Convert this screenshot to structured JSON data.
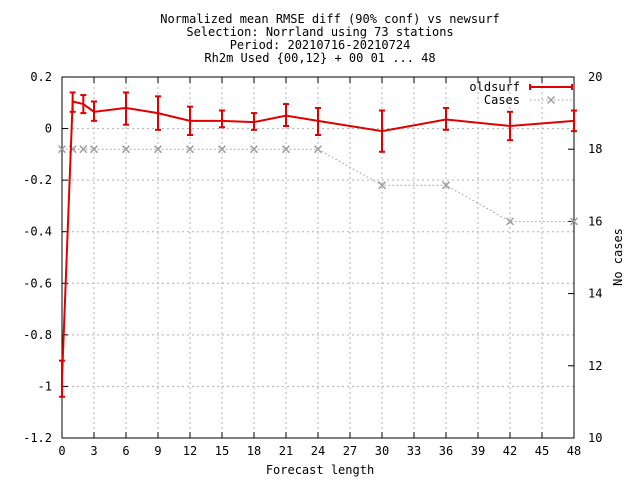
{
  "chart_data": {
    "type": "line",
    "title_lines": [
      "Normalized mean RMSE diff (90% conf) vs newsurf",
      "Selection: Norrland using    73 stations",
      "Period: 20210716-20210724",
      "Rh2m   Used {00,12} + 00 01 ... 48"
    ],
    "xlabel": "Forecast length",
    "ylabel": "",
    "y2label": "No cases",
    "xlim": [
      0,
      48
    ],
    "ylim": [
      -1.2,
      0.2
    ],
    "y2lim": [
      10,
      20
    ],
    "x_ticks": [
      0,
      3,
      6,
      9,
      12,
      15,
      18,
      21,
      24,
      27,
      30,
      33,
      36,
      39,
      42,
      45,
      48
    ],
    "y_ticks": [
      0.2,
      0,
      -0.2,
      -0.4,
      -0.6,
      -0.8,
      -1,
      -1.2
    ],
    "y_tick_labels": [
      "0.2",
      "0",
      "-0.2",
      "-0.4",
      "-0.6",
      "-0.8",
      "-1",
      "-1.2"
    ],
    "y2_ticks": [
      20,
      18,
      16,
      14,
      12,
      10
    ],
    "grid": true,
    "legend_position": "top-right",
    "series": [
      {
        "name": "oldsurf",
        "color": "#e00000",
        "axis": "left",
        "style": "line-errorbars",
        "x": [
          0,
          1,
          2,
          3,
          6,
          9,
          12,
          15,
          18,
          21,
          24,
          30,
          36,
          42,
          48
        ],
        "y": [
          -0.97,
          0.105,
          0.095,
          0.065,
          0.08,
          0.06,
          0.03,
          0.03,
          0.025,
          0.05,
          0.03,
          -0.01,
          0.035,
          0.01,
          0.03
        ],
        "err_low": [
          -1.04,
          0.065,
          0.06,
          0.03,
          0.015,
          -0.005,
          -0.025,
          0.005,
          -0.005,
          0.01,
          -0.025,
          -0.09,
          -0.005,
          -0.045,
          -0.01
        ],
        "err_high": [
          -0.9,
          0.14,
          0.13,
          0.105,
          0.14,
          0.125,
          0.085,
          0.07,
          0.06,
          0.095,
          0.08,
          0.07,
          0.08,
          0.065,
          0.07
        ]
      },
      {
        "name": "Cases",
        "color": "#a0a0a0",
        "axis": "right",
        "style": "dotted-cross",
        "x": [
          0,
          1,
          2,
          3,
          6,
          9,
          12,
          15,
          18,
          21,
          24,
          30,
          36,
          42,
          48
        ],
        "y": [
          18,
          18,
          18,
          18,
          18,
          18,
          18,
          18,
          18,
          18,
          18,
          17,
          17,
          16,
          16
        ]
      }
    ]
  }
}
